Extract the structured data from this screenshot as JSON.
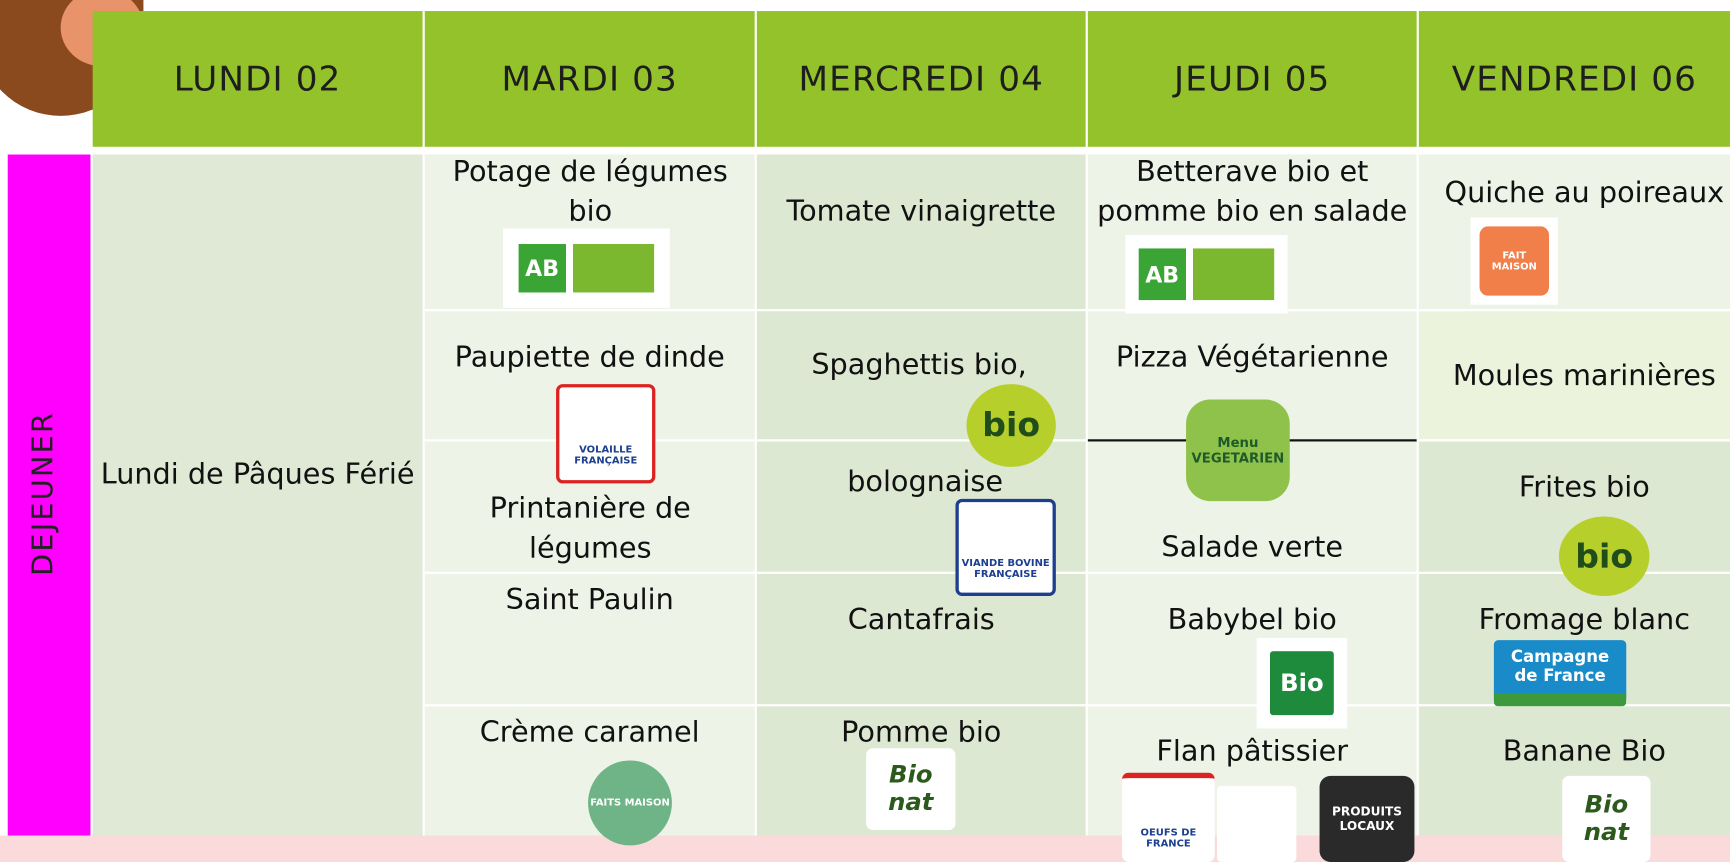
{
  "header": {
    "days": [
      "LUNDI 02",
      "MARDI 03",
      "MERCREDI 04",
      "JEUDI 05",
      "VENDREDI 06"
    ]
  },
  "meal": "DEJEUNER",
  "monday": "Lundi de Pâques Férié",
  "tuesday": [
    "Potage de légumes bio",
    "Paupiette de dinde",
    "Printanière de légumes",
    "Saint Paulin",
    "Crème caramel"
  ],
  "wednesday": [
    "Tomate vinaigrette",
    "Spaghettis bio,",
    "bolognaise",
    "Cantafrais",
    "Pomme bio"
  ],
  "thursday": [
    "Betterave bio et pomme bio en salade",
    "Pizza Végétarienne",
    "Salade verte",
    "Babybel bio",
    "Flan pâtissier"
  ],
  "friday": [
    "Quiche au poireaux",
    "Moules marinières",
    "Frites bio",
    "Fromage blanc",
    "Banane Bio"
  ],
  "logos": [
    "AB",
    "VOLAILLE FRANÇAISE",
    "FAITS MAISON",
    "bio",
    "VIANDE BOVINE FRANÇAISE",
    "Bio nat",
    "AB",
    "Menu VEGETARIEN",
    "Bio",
    "OEUFS DE FRANCE",
    "PRODUITS LOCAUX",
    "FAIT MAISON",
    "bio",
    "Campagne de France",
    "Bio nat"
  ]
}
